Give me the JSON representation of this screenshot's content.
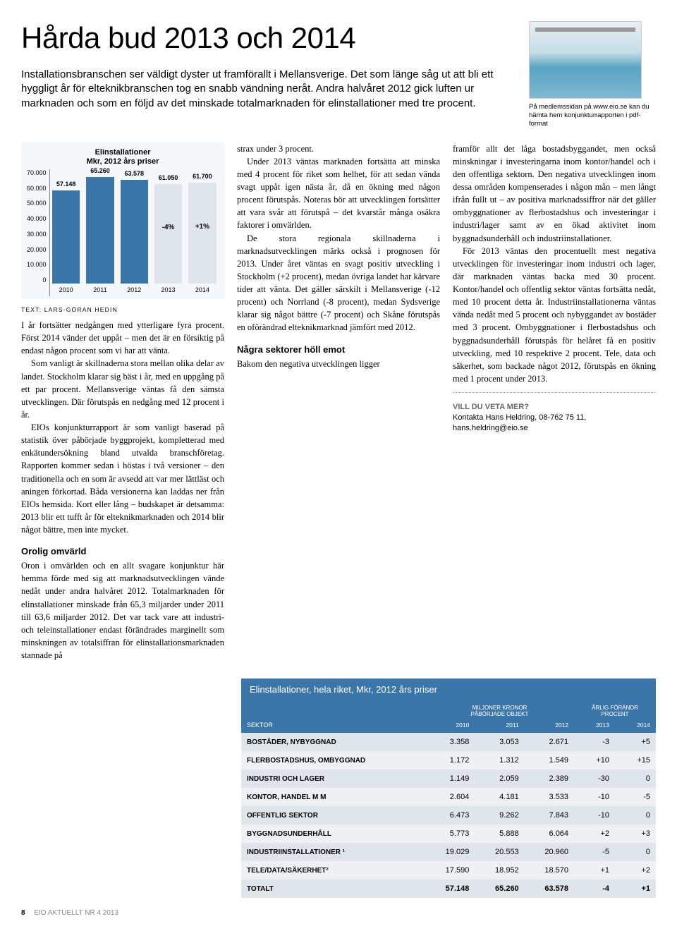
{
  "headline": "Hårda bud 2013 och 2014",
  "intro": "Installationsbranschen ser väldigt dyster ut framförallt i Mellansverige. Det som länge såg ut att bli ett hyggligt år för elteknikbranschen tog en snabb vändning neråt. Andra halvåret 2012 gick luften ur marknaden och som en följd av det minskade totalmarknaden för elinstallationer med tre procent.",
  "thumb_caption": "På medlemssidan på www.eio.se kan du hämta hem konjunkturrapporten i pdf-format",
  "byline": "TEXT: LARS-GÖRAN HEDIN",
  "col1_a": "I år fortsätter nedgången med ytterligare fyra procent. Först 2014 vänder det uppåt – men det är en försiktig på endast någon procent som vi har att vänta.",
  "col1_b": "Som vanligt är skillnaderna stora mellan olika delar av landet. Stockholm klarar sig bäst i år, med en uppgång på ett par procent. Mellansverige väntas få den sämsta utvecklingen. Där förutspås en nedgång med 12 procent i år.",
  "col1_c": "EIOs konjunkturrapport är som vanligt baserad på statistik över påbörjade byggprojekt, kompletterad med enkätundersökning bland utvalda branschföretag. Rapporten kommer sedan i höstas i två versioner – den traditionella och en som är avsedd att var mer lättläst och aningen förkortad. Båda versionerna kan laddas ner från EIOs hemsida. Kort eller lång – budskapet är detsamma: 2013 blir ett tufft år för elteknikmarknaden och 2014 blir något bättre, men inte mycket.",
  "sub1": "Orolig omvärld",
  "col1_d": "Oron i omvärlden och en allt svagare konjunktur här hemma förde med sig att marknadsutvecklingen vände nedåt under andra halvåret 2012. Totalmarknaden för elinstallationer minskade från 65,3 miljarder under 2011 till 63,6 miljarder 2012. Det var tack vare att industri- och teleinstallationer endast förändrades marginellt som minskningen av totalsiffran för elinstallationsmarknaden stannade på",
  "col2_a": "strax under 3 procent.",
  "col2_b": "Under 2013 väntas marknaden fortsätta att minska med 4 procent för riket som helhet, för att sedan vända svagt uppåt igen nästa år, då en ökning med någon procent förutspås. Noteras bör att utvecklingen fortsätter att vara svår att förutspå – det kvarstår många osäkra faktorer i omvärlden.",
  "col2_c": "De stora regionala skillnaderna i marknadsutvecklingen märks också i prognosen för 2013. Under året väntas en svagt positiv utveckling i Stockholm (+2 procent), medan övriga landet har kärvare tider att vänta. Det gäller särskilt i Mellansverige (-12 procent) och Norrland (-8 procent), medan Sydsverige klarar sig något bättre (-7 procent) och Skåne förutspås en oförändrad elteknikmarknad jämfört med 2012.",
  "sub2": "Några sektorer höll emot",
  "col2_d": "Bakom den negativa utvecklingen ligger",
  "col3_a": "framför allt det låga bostadsbyggandet, men också minskningar i investeringarna inom kontor/handel och i den offentliga sektorn. Den negativa utvecklingen inom dessa områden kompenserades i någon mån – men långt ifrån fullt ut – av positiva marknadssiffror när det gäller ombyggnationer av flerbostadshus och investeringar i industri/lager samt av en ökad aktivitet inom byggnadsunderhåll och industriinstallationer.",
  "col3_b": "För 2013 väntas den procentuellt mest negativa utvecklingen för investeringar inom industri och lager, där marknaden väntas backa med 30 procent. Kontor/handel och offentlig sektor väntas fortsätta nedåt, med 10 procent detta år. Industriinstallationerna väntas vända nedåt med 5 procent och nybyggandet av bostäder med 3 procent. Ombyggnationer i flerbostadshus och byggnadsunderhåll förutspås för helåret få en positiv utveckling, med 10 respektive 2 procent. Tele, data och säkerhet, som backade något 2012, förutspås en ökning med 1 procent under 2013.",
  "contact_head": "VILL DU VETA MER?",
  "contact_body": "Kontakta Hans Heldring, 08-762 75 11, hans.heldring@eio.se",
  "chart": {
    "title_l1": "Elinstallationer",
    "title_l2": "Mkr, 2012 års priser",
    "ylim": 70000,
    "yticks": [
      "0",
      "10.000",
      "20.000",
      "30.000",
      "40.000",
      "50.000",
      "60.000",
      "70.000"
    ],
    "bars": [
      {
        "year": "2010",
        "value": 57148,
        "label": "57.148",
        "color": "#3c76a8",
        "annot": ""
      },
      {
        "year": "2011",
        "value": 65260,
        "label": "65.260",
        "color": "#3c76a8",
        "annot": ""
      },
      {
        "year": "2012",
        "value": 63578,
        "label": "63.578",
        "color": "#3c76a8",
        "annot": ""
      },
      {
        "year": "2013",
        "value": 61050,
        "label": "61.050",
        "color": "#dfe5ea",
        "annot": "-4%"
      },
      {
        "year": "2014",
        "value": 61700,
        "label": "61.700",
        "color": "#dfe5ea",
        "annot": "+1%"
      }
    ]
  },
  "table": {
    "title": "Elinstallationer, hela riket, Mkr, 2012 års priser",
    "group1": "MILJONER KRONOR",
    "group2": "ÅRLIG FÖRÄNDR",
    "sub1": "PÅBÖRJADE OBJEKT",
    "sub2": "PROCENT",
    "sector_head": "SEKTOR",
    "years": [
      "2010",
      "2011",
      "2012",
      "2013",
      "2014"
    ],
    "rows": [
      {
        "label": "BOSTÄDER, NYBYGGNAD",
        "v": [
          "3.358",
          "3.053",
          "2.671",
          "-3",
          "+5"
        ]
      },
      {
        "label": "FLERBOSTADSHUS, OMBYGGNAD",
        "v": [
          "1.172",
          "1.312",
          "1.549",
          "+10",
          "+15"
        ]
      },
      {
        "label": "INDUSTRI OCH LAGER",
        "v": [
          "1.149",
          "2.059",
          "2.389",
          "-30",
          "0"
        ]
      },
      {
        "label": "KONTOR, HANDEL M M",
        "v": [
          "2.604",
          "4.181",
          "3.533",
          "-10",
          "-5"
        ]
      },
      {
        "label": "OFFENTLIG SEKTOR",
        "v": [
          "6.473",
          "9.262",
          "7.843",
          "-10",
          "0"
        ]
      },
      {
        "label": "BYGGNADSUNDERHÅLL",
        "v": [
          "5.773",
          "5.888",
          "6.064",
          "+2",
          "+3"
        ]
      },
      {
        "label": "INDUSTRIINSTALLATIONER ¹",
        "v": [
          "19.029",
          "20.553",
          "20.960",
          "-5",
          "0"
        ]
      },
      {
        "label": "TELE/DATA/SÄKERHET²",
        "v": [
          "17.590",
          "18.952",
          "18.570",
          "+1",
          "+2"
        ]
      },
      {
        "label": "TOTALT",
        "v": [
          "57.148",
          "65.260",
          "63.578",
          "-4",
          "+1"
        ]
      }
    ]
  },
  "footer": {
    "page": "8",
    "pub": "EIO AKTUELLT NR 4 2013"
  }
}
